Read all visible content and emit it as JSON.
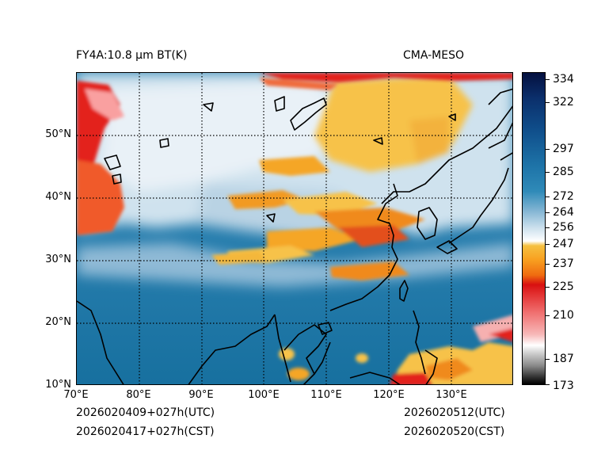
{
  "header": {
    "product_title": "FY4A:10.8 µm BT(K)",
    "source_title": "CMA-MESO"
  },
  "map": {
    "lat_labels": [
      "50°N",
      "40°N",
      "30°N",
      "20°N",
      "10°N"
    ],
    "lon_labels": [
      "70°E",
      "80°E",
      "90°E",
      "100°E",
      "110°E",
      "120°E",
      "130°E"
    ],
    "lon_range": [
      70,
      140
    ],
    "lat_range": [
      10,
      60
    ],
    "gridline_style": "dotted"
  },
  "colorbar": {
    "tick_labels": [
      "334",
      "322",
      "297",
      "285",
      "272",
      "264",
      "256",
      "247",
      "237",
      "225",
      "210",
      "187",
      "173"
    ]
  },
  "footer": {
    "init_utc": "2026020409+027h(UTC)",
    "init_cst": "2026020417+027h(CST)",
    "valid_utc": "2026020512(UTC)",
    "valid_cst": "2026020520(CST)"
  },
  "colors": {
    "warm_ocean": "#1f7ba9",
    "cold_cloud_yellow": "#f7c24a",
    "cold_cloud_orange": "#f08a1e",
    "very_cold_red": "#e3201b",
    "mid_cloud_white": "#e8f0f6"
  }
}
